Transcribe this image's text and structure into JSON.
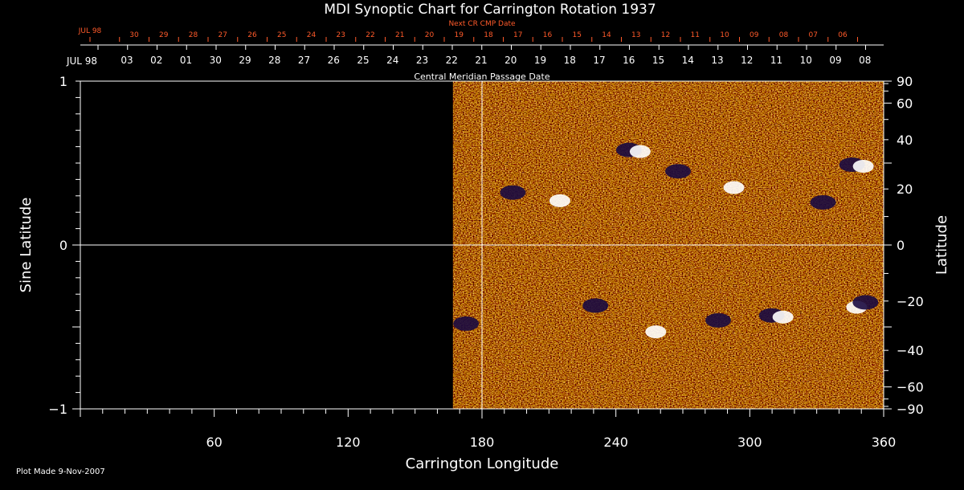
{
  "chart_data": {
    "type": "heatmap",
    "title": "MDI Synoptic Chart for Carrington Rotation 1937",
    "xlabel": "Carrington Longitude",
    "ylabel_left": "Sine Latitude",
    "ylabel_right": "Latitude",
    "xlim": [
      0,
      360
    ],
    "ylim": [
      -1,
      1
    ],
    "x_ticks": [
      60,
      120,
      180,
      240,
      300,
      360
    ],
    "y_ticks_left": [
      1,
      0,
      -1
    ],
    "y_ticks_left_labels": [
      "1",
      "0",
      "−1"
    ],
    "y_ticks_right": [
      90,
      60,
      40,
      20,
      0,
      -20,
      -40,
      -60,
      -90
    ],
    "y_ticks_right_labels": [
      "90",
      "60",
      "40",
      "20",
      "0",
      "−20",
      "−40",
      "−60",
      "−90"
    ],
    "data_coverage_start_longitude": 167,
    "central_meridian_marker_longitude": 180,
    "grid": false,
    "top_axis": {
      "title": "Central Meridian Passage Date",
      "month_label": "JUL 98",
      "dates": [
        "03",
        "02",
        "01",
        "30",
        "29",
        "28",
        "27",
        "26",
        "25",
        "24",
        "23",
        "22",
        "21",
        "20",
        "19",
        "18",
        "17",
        "16",
        "15",
        "14",
        "13",
        "12",
        "11",
        "10",
        "09",
        "08"
      ]
    },
    "next_cr_axis": {
      "title": "Next CR CMP Date",
      "month_label": "JUL 98",
      "dates": [
        "30",
        "29",
        "28",
        "27",
        "26",
        "25",
        "24",
        "23",
        "22",
        "21",
        "20",
        "19",
        "18",
        "17",
        "16",
        "15",
        "14",
        "13",
        "12",
        "11",
        "10",
        "09",
        "08",
        "07",
        "06"
      ]
    },
    "colors": {
      "background": "#000000",
      "axes": "#ffffff",
      "next_cr_axis": "#ff5a2a",
      "field_base": "#e0501a",
      "positive_polarity": "#ffffff",
      "negative_polarity": "#1a0a40"
    },
    "active_regions": [
      {
        "lon": 196,
        "sinlat": 0.32,
        "polarity": "negative"
      },
      {
        "lon": 212,
        "sinlat": 0.28,
        "polarity": "positive"
      },
      {
        "lon": 248,
        "sinlat": 0.58,
        "polarity": "mixed"
      },
      {
        "lon": 270,
        "sinlat": 0.45,
        "polarity": "negative"
      },
      {
        "lon": 290,
        "sinlat": 0.36,
        "polarity": "positive"
      },
      {
        "lon": 335,
        "sinlat": 0.26,
        "polarity": "negative"
      },
      {
        "lon": 348,
        "sinlat": 0.49,
        "polarity": "mixed"
      },
      {
        "lon": 233,
        "sinlat": -0.37,
        "polarity": "negative"
      },
      {
        "lon": 255,
        "sinlat": -0.52,
        "polarity": "positive"
      },
      {
        "lon": 288,
        "sinlat": -0.46,
        "polarity": "negative"
      },
      {
        "lon": 312,
        "sinlat": -0.43,
        "polarity": "mixed"
      },
      {
        "lon": 345,
        "sinlat": -0.37,
        "polarity": "positive"
      },
      {
        "lon": 354,
        "sinlat": -0.35,
        "polarity": "negative"
      },
      {
        "lon": 175,
        "sinlat": -0.48,
        "polarity": "negative"
      }
    ]
  },
  "footer": {
    "plot_made": "Plot Made  9-Nov-2007"
  }
}
